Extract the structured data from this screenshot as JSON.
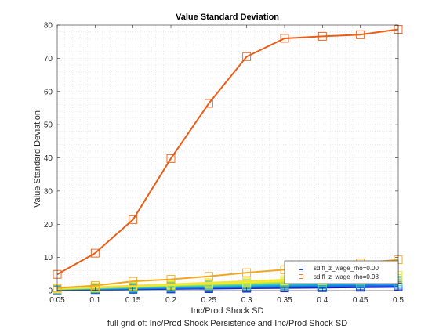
{
  "chart_data": {
    "type": "line",
    "title": "Value Standard Deviation",
    "xlabel": "Inc/Prod Shock SD",
    "ylabel": "Value Standard Deviation",
    "caption": "full grid of: Inc/Prod Shock Persistence and Inc/Prod Shock SD",
    "x": [
      0.05,
      0.1,
      0.15,
      0.2,
      0.25,
      0.3,
      0.35,
      0.4,
      0.45,
      0.5
    ],
    "xlim": [
      0.05,
      0.5
    ],
    "ylim": [
      0,
      80
    ],
    "xticks": [
      "0.05",
      "0.1",
      "0.15",
      "0.2",
      "0.25",
      "0.3",
      "0.35",
      "0.4",
      "0.45",
      "0.5"
    ],
    "yticks": [
      "0",
      "10",
      "20",
      "30",
      "40",
      "50",
      "60",
      "70",
      "80"
    ],
    "grid": "minor dotted",
    "legend_position": "bottom-right",
    "legend": [
      "sd:fl_z_wage_rho=0.00",
      "sd:fl_z_wage_rho=0.98"
    ],
    "marker": "square",
    "series": [
      {
        "values": [
          0.2,
          0.3,
          0.4,
          0.5,
          0.6,
          0.7,
          0.8,
          0.9,
          1.0,
          1.1
        ],
        "color": "#0a14b4"
      },
      {
        "values": [
          0.25,
          0.35,
          0.5,
          0.6,
          0.75,
          0.85,
          1.0,
          1.1,
          1.25,
          1.35
        ],
        "color": "#1a3dd8"
      },
      {
        "values": [
          0.3,
          0.45,
          0.6,
          0.75,
          0.9,
          1.05,
          1.2,
          1.35,
          1.5,
          1.65
        ],
        "color": "#1e70e8"
      },
      {
        "values": [
          0.35,
          0.55,
          0.75,
          0.95,
          1.15,
          1.35,
          1.55,
          1.75,
          1.95,
          2.15
        ],
        "color": "#13a3d8"
      },
      {
        "values": [
          0.4,
          0.65,
          0.9,
          1.15,
          1.4,
          1.65,
          1.9,
          2.15,
          2.4,
          2.65
        ],
        "color": "#2ec4c4"
      },
      {
        "values": [
          0.45,
          0.75,
          1.05,
          1.35,
          1.65,
          1.95,
          2.25,
          2.55,
          2.85,
          3.15
        ],
        "color": "#6fd28a"
      },
      {
        "values": [
          0.5,
          0.85,
          1.2,
          1.55,
          1.9,
          2.25,
          2.6,
          2.95,
          3.3,
          3.65
        ],
        "color": "#c2e34c"
      },
      {
        "values": [
          0.55,
          0.95,
          1.35,
          1.75,
          2.15,
          2.55,
          2.95,
          3.35,
          3.75,
          4.15
        ],
        "color": "#f2f21e"
      },
      {
        "values": [
          0.6,
          1.05,
          1.5,
          1.95,
          2.4,
          2.85,
          3.3,
          3.75,
          4.2,
          4.65
        ],
        "color": "#f2e23a"
      },
      {
        "values": [
          0.8,
          1.5,
          2.8,
          3.4,
          4.3,
          5.4,
          6.3,
          7.4,
          8.3,
          9.3
        ],
        "color": "#f0a81e"
      },
      {
        "values": [
          4.9,
          11.3,
          21.4,
          39.8,
          56.4,
          70.5,
          76.0,
          76.6,
          77.1,
          78.7
        ],
        "color": "#eb5c14"
      }
    ]
  }
}
